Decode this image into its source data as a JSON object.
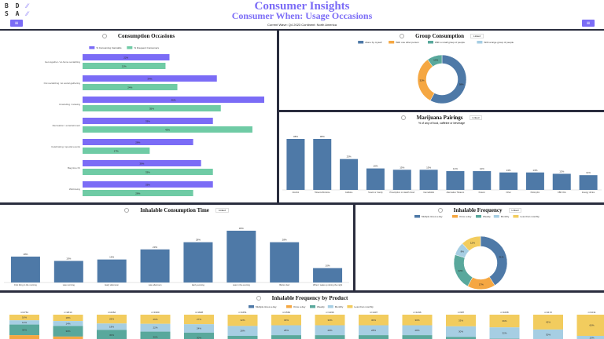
{
  "header": {
    "logo": "BDSA",
    "title": "Consumer Insights",
    "subtitle": "Consumer When: Usage Occasions",
    "filters": "Current Wave: Q4 2023 Continent: North America",
    "menu_icon": "hamburger-icon"
  },
  "colors": {
    "accent": "#7b6cf6",
    "green": "#6fcba5",
    "blue": "#4e79a7",
    "orange": "#f5a742",
    "teal": "#59a89c",
    "light": "#a6cee3",
    "yellow": "#f2cc5e"
  },
  "occasions": {
    "title": "Consumption Occasions",
    "chart_data": {
      "type": "bar",
      "orientation": "horizontal",
      "categories": [
        "Get-together / at-home socializing",
        "Out socializing / at social gathering",
        "Unwinding / relaxing",
        "Recreation / entertainment",
        "Celebrating / special events",
        "Bag time hh",
        "Well-being"
      ],
      "series": [
        {
          "name": "% Consuming Cannabis",
          "values": [
            22,
            34,
            46,
            33,
            28,
            30,
            33
          ]
        },
        {
          "name": "% Frequent Consumers",
          "values": [
            21,
            24,
            35,
            43,
            17,
            33,
            28
          ]
        }
      ]
    }
  },
  "group": {
    "title": "Group Consumption",
    "button": "Linked",
    "chart_data": {
      "type": "pie",
      "labels": [
        "Alone by myself",
        "With one other person",
        "With a small group of people",
        "With a large group of people"
      ],
      "values": [
        58,
        32,
        10,
        0
      ]
    }
  },
  "pairings": {
    "title": "Marijuana Pairings",
    "button": "Linked",
    "subtitle": "% of any of food, caffeine or beverage",
    "chart_data": {
      "type": "bar",
      "categories": [
        "Alcohol",
        "Tobacco/Nicotine",
        "Caffeine",
        "Snack or Candy",
        "Prescription or Health Food",
        "Cannabidiol",
        "Alternative Tobacco",
        "Kratom",
        "Other",
        "Psilocybin",
        "CBD Oils",
        "Energy drinks"
      ],
      "values": [
        38,
        38,
        23,
        16,
        15,
        15,
        14,
        14,
        13,
        13,
        12,
        11
      ]
    }
  },
  "time": {
    "title": "Inhalable Consumption Time",
    "button": "Linked",
    "chart_data": {
      "type": "bar",
      "categories": [
        "First thing in the morning",
        "Late morning",
        "Early afternoon",
        "Late afternoon",
        "Early evening",
        "Late in the evening",
        "Before bed",
        "When I wake up during the night"
      ],
      "values": [
        18,
        15,
        16,
        23,
        28,
        36,
        28,
        10
      ]
    }
  },
  "freq": {
    "title": "Inhalable Frequency",
    "button": "Linked",
    "chart_data": {
      "type": "pie",
      "labels": [
        "Multiple times a day",
        "Once a day",
        "Weekly",
        "Monthly",
        "Less than monthly"
      ],
      "values": [
        41,
        17,
        22,
        8,
        12
      ]
    }
  },
  "byproduct": {
    "title": "Inhalable Frequency by Product",
    "chart_data": {
      "type": "bar",
      "stacked": true,
      "legend": [
        "Multiple times a day",
        "Once a day",
        "Weekly",
        "Monthly",
        "Less than monthly"
      ],
      "categories": [
        "P1",
        "P2",
        "P3",
        "P4",
        "P5",
        "P6",
        "P7",
        "P8",
        "P9",
        "P10",
        "P11",
        "P12",
        "P13",
        "P14"
      ],
      "totals": [
        "n=2761",
        "n=2614",
        "n=2262",
        "n=1960",
        "n=1828",
        "n=1651",
        "n=1562",
        "n=1496",
        "n=1407",
        "n=1296",
        "n=987",
        "n=1068",
        "n=1172",
        "n=1011"
      ],
      "series": [
        {
          "name": "Less than monthly",
          "values": [
            16,
            18,
            25,
            26,
            27,
            32,
            30,
            30,
            30,
            30,
            33,
            36,
            42,
            60
          ]
        },
        {
          "name": "Monthly",
          "values": [
            12,
            14,
            18,
            22,
            24,
            28,
            28,
            28,
            28,
            28,
            30,
            32,
            30,
            10
          ]
        },
        {
          "name": "Weekly",
          "values": [
            30,
            30,
            30,
            30,
            30,
            30,
            30,
            30,
            30,
            30,
            30,
            28,
            24,
            26
          ]
        }
      ]
    }
  }
}
